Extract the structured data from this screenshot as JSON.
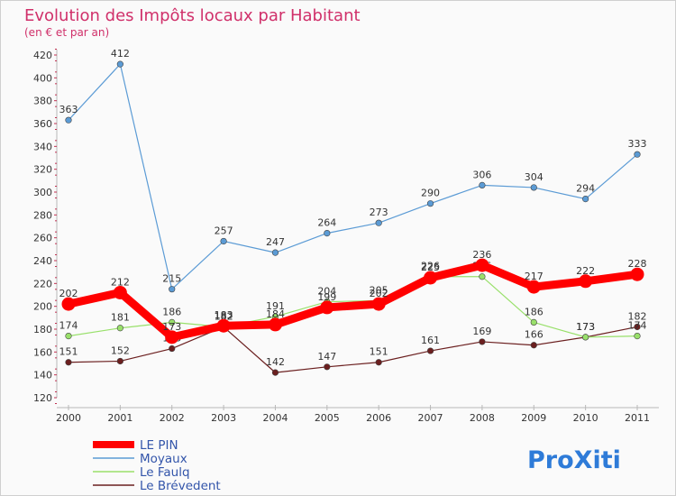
{
  "chart_data": {
    "type": "line",
    "title": "Evolution des Impôts locaux par Habitant",
    "subtitle": "(en € et par an)",
    "x": [
      "2000",
      "2001",
      "2002",
      "2003",
      "2004",
      "2005",
      "2006",
      "2007",
      "2008",
      "2009",
      "2010",
      "2011"
    ],
    "ylim": [
      120,
      420
    ],
    "yticks": [
      120,
      140,
      160,
      180,
      200,
      220,
      240,
      260,
      280,
      300,
      320,
      340,
      360,
      380,
      400,
      420
    ],
    "grid": false,
    "legend_position": "bottom-left",
    "series": [
      {
        "name": "LE PIN",
        "color": "#ff0000",
        "values": [
          202,
          212,
          173,
          183,
          184,
          199,
          202,
          225,
          236,
          217,
          222,
          228
        ]
      },
      {
        "name": "Moyaux",
        "color": "#5b9bd5",
        "values": [
          363,
          412,
          215,
          257,
          247,
          264,
          273,
          290,
          306,
          304,
          294,
          333
        ]
      },
      {
        "name": "Le Faulq",
        "color": "#99e06b",
        "values": [
          174,
          181,
          186,
          182,
          191,
          204,
          205,
          226,
          226,
          186,
          173,
          174
        ]
      },
      {
        "name": "Le Brévedent",
        "color": "#6b1f1f",
        "values": [
          151,
          152,
          163,
          182,
          142,
          147,
          151,
          161,
          169,
          166,
          173,
          182
        ]
      }
    ]
  },
  "logo": {
    "text": "ProXiti"
  }
}
